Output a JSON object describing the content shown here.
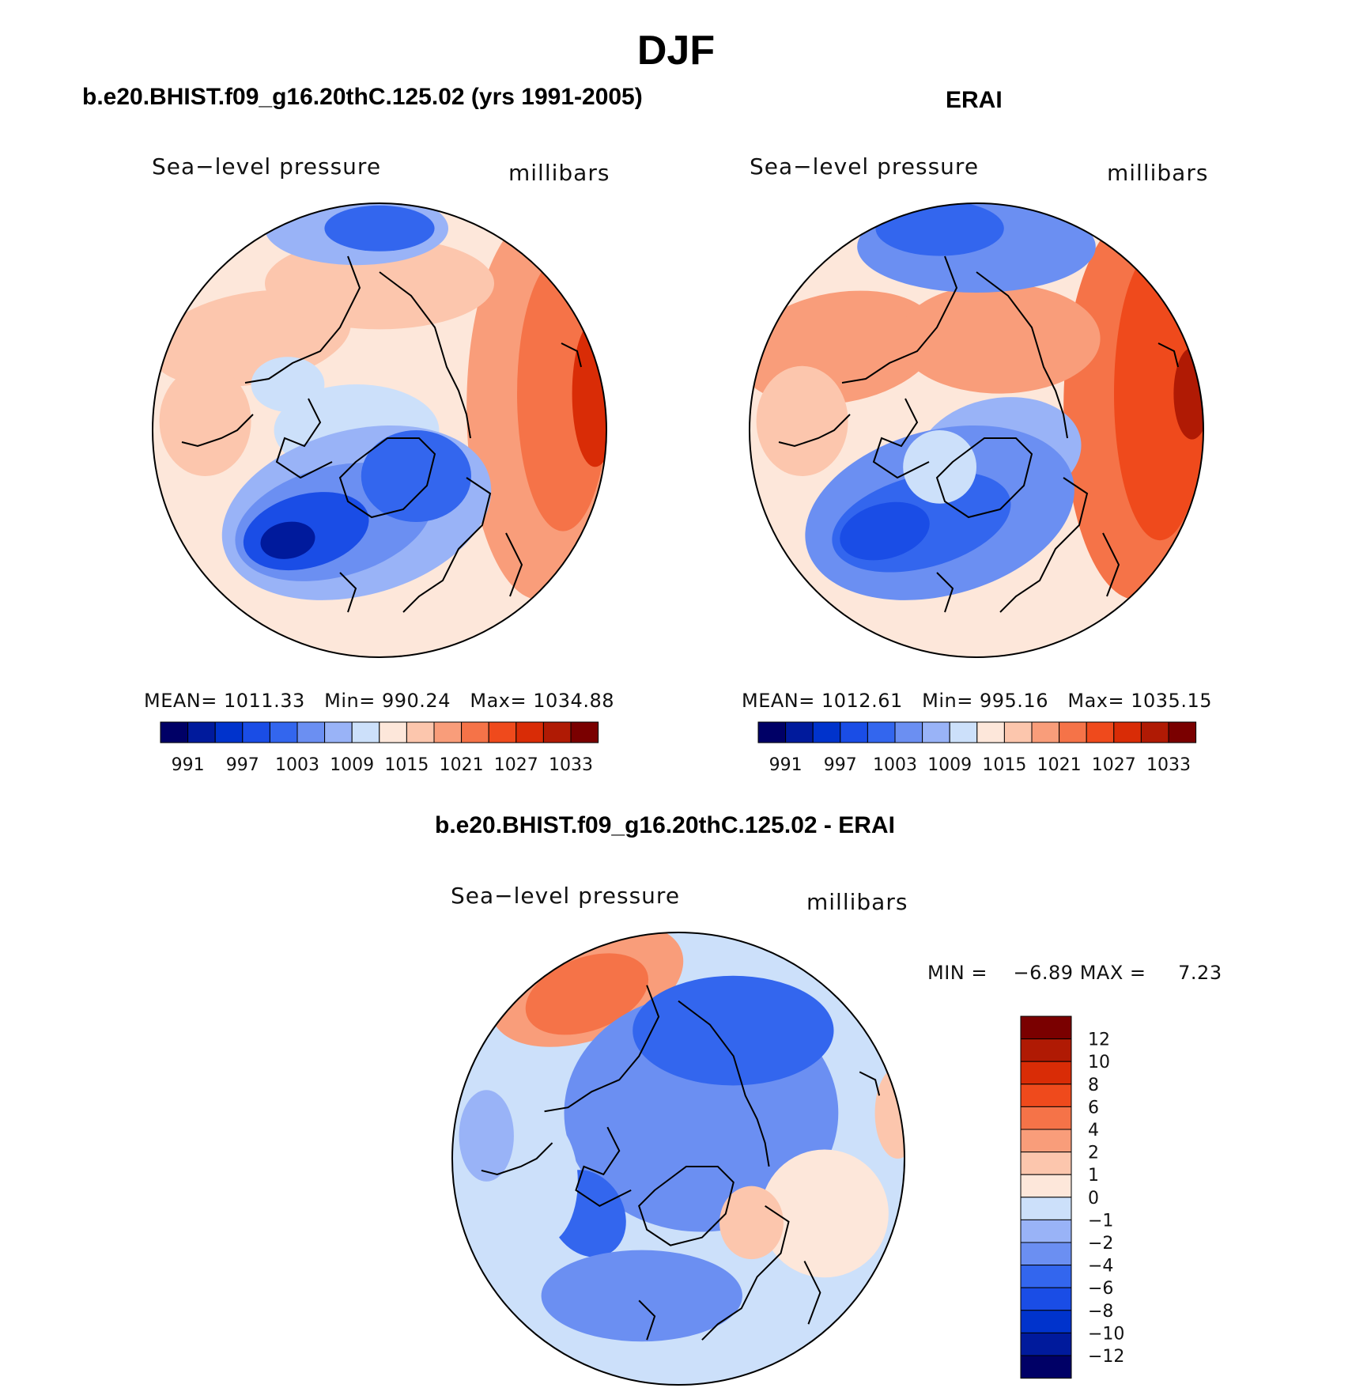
{
  "title": "DJF",
  "panels": {
    "model": {
      "title": "b.e20.BHIST.f09_g16.20thC.125.02 (yrs 1991-2005)",
      "left_label": "Sea−level pressure",
      "right_label": "millibars",
      "stats": {
        "mean_label": "MEAN=",
        "mean": "1011.33",
        "min_label": "Min=",
        "min": "990.24",
        "max_label": "Max=",
        "max": "1034.88"
      }
    },
    "obs": {
      "title": "ERAI",
      "left_label": "Sea−level pressure",
      "right_label": "millibars",
      "stats": {
        "mean_label": "MEAN=",
        "mean": "1012.61",
        "min_label": "Min=",
        "min": "995.16",
        "max_label": "Max=",
        "max": "1035.15"
      }
    },
    "diff": {
      "title": "b.e20.BHIST.f09_g16.20thC.125.02 - ERAI",
      "left_label": "Sea−level pressure",
      "right_label": "millibars",
      "stats": {
        "min_label": "MIN =",
        "min": "−6.89",
        "max_label": "MAX =",
        "max": "7.23"
      }
    }
  },
  "chart_data": [
    {
      "type": "heatmap",
      "title": "b.e20.BHIST.f09_g16.20thC.125.02 (yrs 1991-2005)",
      "variable": "Sea-level pressure",
      "units": "millibars",
      "projection": "north polar stereographic",
      "mean": 1011.33,
      "min": 990.24,
      "max": 1034.88,
      "colorbar_ticks": [
        "991",
        "997",
        "1003",
        "1009",
        "1015",
        "1021",
        "1027",
        "1033"
      ],
      "contour_levels": [
        991,
        994,
        997,
        1000,
        1003,
        1006,
        1009,
        1012,
        1015,
        1018,
        1021,
        1024,
        1027,
        1030,
        1033
      ]
    },
    {
      "type": "heatmap",
      "title": "ERAI",
      "variable": "Sea-level pressure",
      "units": "millibars",
      "projection": "north polar stereographic",
      "mean": 1012.61,
      "min": 995.16,
      "max": 1035.15,
      "colorbar_ticks": [
        "991",
        "997",
        "1003",
        "1009",
        "1015",
        "1021",
        "1027",
        "1033"
      ],
      "contour_levels": [
        991,
        994,
        997,
        1000,
        1003,
        1006,
        1009,
        1012,
        1015,
        1018,
        1021,
        1024,
        1027,
        1030,
        1033
      ]
    },
    {
      "type": "heatmap",
      "title": "b.e20.BHIST.f09_g16.20thC.125.02 - ERAI",
      "variable": "Sea-level pressure",
      "units": "millibars",
      "projection": "north polar stereographic",
      "min": -6.89,
      "max": 7.23,
      "colorbar_ticks": [
        "12",
        "10",
        "8",
        "6",
        "4",
        "2",
        "1",
        "0",
        "−1",
        "−2",
        "−4",
        "−6",
        "−8",
        "−10",
        "−12"
      ],
      "contour_levels": [
        -12,
        -10,
        -8,
        -6,
        -4,
        -2,
        -1,
        0,
        1,
        2,
        4,
        6,
        8,
        10,
        12
      ]
    }
  ],
  "colormap": [
    "#000066",
    "#001a9c",
    "#0033cc",
    "#1a4de6",
    "#3366ee",
    "#6b8ff2",
    "#99b3f7",
    "#cce0fa",
    "#fde7da",
    "#fcc6ad",
    "#f99d7a",
    "#f57348",
    "#ef4a1c",
    "#d92c06",
    "#b01a04",
    "#7a0000"
  ]
}
